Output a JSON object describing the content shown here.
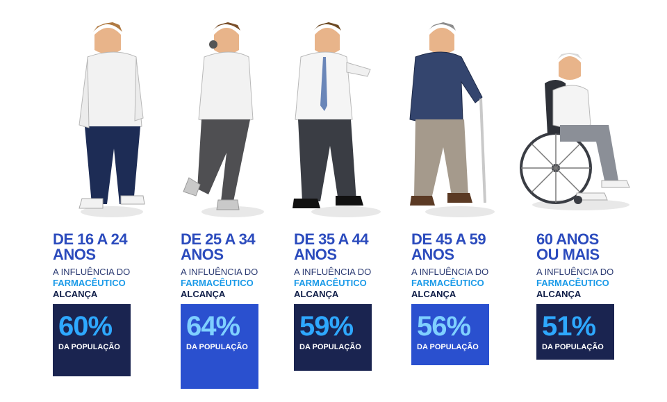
{
  "groups": [
    {
      "age_line1": "DE 16 A 24",
      "age_line2": "ANOS",
      "influence": "A INFLUÊNCIA DO",
      "profession": "FARMACÊUTICO",
      "reach": "ALCANÇA",
      "percent": "60%",
      "population": "DA POPULAÇÃO",
      "box_color": "#1a2450"
    },
    {
      "age_line1": "DE 25 A 34",
      "age_line2": "ANOS",
      "influence": "A INFLUÊNCIA DO",
      "profession": "FARMACÊUTICO",
      "reach": "ALCANÇA",
      "percent": "64%",
      "population": "DA POPULAÇÃO",
      "box_color": "#2a50cf"
    },
    {
      "age_line1": "DE 35 A 44",
      "age_line2": "ANOS",
      "influence": "A INFLUÊNCIA DO",
      "profession": "FARMACÊUTICO",
      "reach": "ALCANÇA",
      "percent": "59%",
      "population": "DA POPULAÇÃO",
      "box_color": "#1a2450"
    },
    {
      "age_line1": "DE 45 A 59",
      "age_line2": "ANOS",
      "influence": "A INFLUÊNCIA DO",
      "profession": "FARMACÊUTICO",
      "reach": "ALCANÇA",
      "percent": "56%",
      "population": "DA POPULAÇÃO",
      "box_color": "#2a50cf"
    },
    {
      "age_line1": "60 ANOS",
      "age_line2": "OU MAIS",
      "influence": "A INFLUÊNCIA DO",
      "profession": "FARMACÊUTICO",
      "reach": "ALCANÇA",
      "percent": "51%",
      "population": "DA POPULAÇÃO",
      "box_color": "#1a2450"
    }
  ],
  "figures": [
    "young-man-figure",
    "man-with-headphones-figure",
    "businessman-figure",
    "elderly-man-with-cane-figure",
    "man-in-wheelchair-figure"
  ]
}
